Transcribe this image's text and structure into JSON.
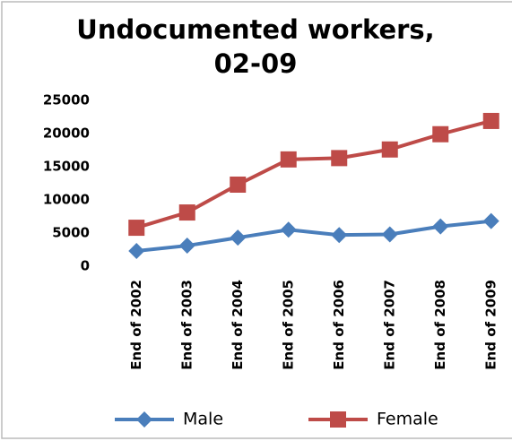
{
  "chart_data": {
    "type": "line",
    "title": "Undocumented workers, 02-09",
    "categories": [
      "End of 2002",
      "End of 2003",
      "End of 2004",
      "End of 2005",
      "End of 2006",
      "End of 2007",
      "End of 2008",
      "End of 2009"
    ],
    "series": [
      {
        "name": "Male",
        "color": "#4a7ebb",
        "marker": "diamond",
        "values": [
          2300,
          3100,
          4300,
          5500,
          4700,
          4800,
          6000,
          6800
        ]
      },
      {
        "name": "Female",
        "color": "#be4b48",
        "marker": "square",
        "values": [
          5800,
          8100,
          12300,
          16100,
          16300,
          17600,
          19900,
          21900
        ]
      }
    ],
    "ylim": [
      0,
      25000
    ],
    "yticks": [
      0,
      5000,
      10000,
      15000,
      20000,
      25000
    ],
    "grid": false,
    "legend": "bottom"
  }
}
